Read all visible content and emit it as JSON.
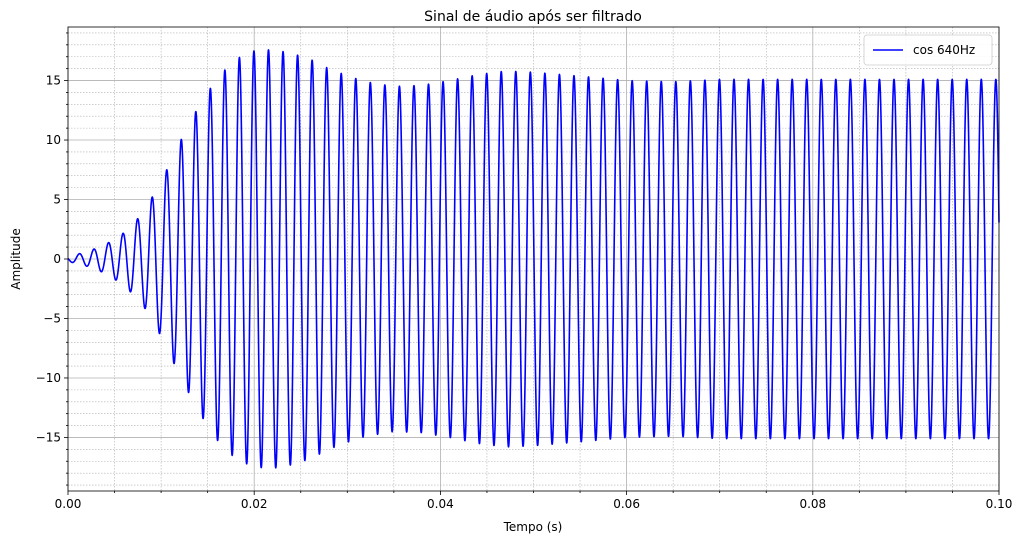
{
  "chart_data": {
    "type": "line",
    "title": "Sinal de áudio após ser filtrado",
    "xlabel": "Tempo (s)",
    "ylabel": "Amplitude",
    "xlim": [
      0.0,
      0.1
    ],
    "ylim": [
      -19.5,
      19.5
    ],
    "x_ticks": [
      0.0,
      0.02,
      0.04,
      0.06,
      0.08,
      0.1
    ],
    "x_tick_labels": [
      "0.00",
      "0.02",
      "0.04",
      "0.06",
      "0.08",
      "0.10"
    ],
    "y_ticks": [
      -15,
      -10,
      -5,
      0,
      5,
      10,
      15
    ],
    "y_tick_labels": [
      "−15",
      "−10",
      "−5",
      "0",
      "5",
      "10",
      "15"
    ],
    "grid": true,
    "minor_grid": true,
    "legend_position": "upper right",
    "series": [
      {
        "name": "cos 640Hz",
        "color": "#0000ff",
        "frequency_hz": 640,
        "steady_state_amplitude": 15.1,
        "envelope": {
          "t": [
            0.0,
            0.002,
            0.004,
            0.006,
            0.008,
            0.01,
            0.012,
            0.014,
            0.016,
            0.018,
            0.02,
            0.022,
            0.024,
            0.026,
            0.028,
            0.03,
            0.032,
            0.035,
            0.038,
            0.041,
            0.044,
            0.047,
            0.05,
            0.053,
            0.056,
            0.06,
            0.065,
            0.07,
            0.08,
            0.1
          ],
          "amplitude": [
            0.2,
            0.6,
            1.2,
            2.2,
            3.8,
            6.5,
            9.8,
            12.8,
            15.2,
            16.8,
            17.5,
            17.6,
            17.3,
            16.8,
            16.0,
            15.4,
            14.9,
            14.5,
            14.6,
            15.0,
            15.5,
            15.8,
            15.7,
            15.5,
            15.3,
            15.0,
            14.9,
            15.1,
            15.1,
            15.1
          ]
        }
      }
    ]
  }
}
